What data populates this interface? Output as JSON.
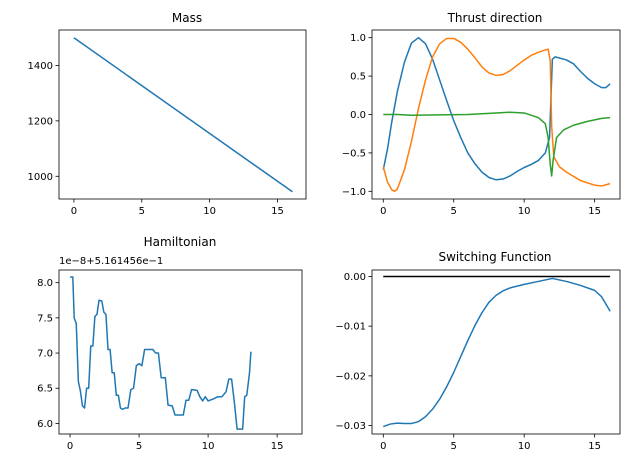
{
  "chart_data": [
    {
      "type": "line",
      "title": "Mass",
      "xlim": [
        -1.1,
        17.1
      ],
      "ylim": [
        918,
        1528
      ],
      "xticks": [
        0,
        5,
        10,
        15
      ],
      "xtick_labels": [
        "0",
        "5",
        "10",
        "15"
      ],
      "yticks": [
        1000,
        1200,
        1400
      ],
      "ytick_labels": [
        "1000",
        "1200",
        "1400"
      ],
      "series": [
        {
          "color": "#1f77b4",
          "points": [
            [
              0,
              1500
            ],
            [
              16.1,
              944
            ]
          ]
        }
      ]
    },
    {
      "type": "line",
      "title": "Thrust direction",
      "xlim": [
        -0.8,
        16.8
      ],
      "ylim": [
        -1.1,
        1.1
      ],
      "xticks": [
        0,
        5,
        10,
        15
      ],
      "xtick_labels": [
        "0",
        "5",
        "10",
        "15"
      ],
      "yticks": [
        -1.0,
        -0.5,
        0.0,
        0.5,
        1.0
      ],
      "ytick_labels": [
        "−1.0",
        "−0.5",
        "0.0",
        "0.5",
        "1.0"
      ],
      "series": [
        {
          "color": "#1f77b4",
          "points": [
            [
              0,
              -0.72
            ],
            [
              0.3,
              -0.45
            ],
            [
              0.6,
              -0.1
            ],
            [
              1.0,
              0.3
            ],
            [
              1.5,
              0.68
            ],
            [
              2.0,
              0.93
            ],
            [
              2.5,
              1.0
            ],
            [
              3.0,
              0.92
            ],
            [
              3.5,
              0.72
            ],
            [
              4.0,
              0.45
            ],
            [
              4.5,
              0.18
            ],
            [
              5.0,
              -0.08
            ],
            [
              5.5,
              -0.3
            ],
            [
              6.0,
              -0.5
            ],
            [
              6.5,
              -0.64
            ],
            [
              7.0,
              -0.75
            ],
            [
              7.5,
              -0.82
            ],
            [
              8.0,
              -0.85
            ],
            [
              8.5,
              -0.84
            ],
            [
              9.0,
              -0.8
            ],
            [
              9.5,
              -0.74
            ],
            [
              10.0,
              -0.69
            ],
            [
              10.5,
              -0.65
            ],
            [
              11.0,
              -0.6
            ],
            [
              11.5,
              -0.5
            ],
            [
              11.8,
              -0.3
            ],
            [
              12.0,
              0.72
            ],
            [
              12.2,
              0.75
            ],
            [
              13.0,
              0.71
            ],
            [
              13.5,
              0.66
            ],
            [
              14.0,
              0.56
            ],
            [
              14.5,
              0.47
            ],
            [
              15.0,
              0.4
            ],
            [
              15.5,
              0.35
            ],
            [
              15.8,
              0.35
            ],
            [
              16.1,
              0.4
            ]
          ]
        },
        {
          "color": "#ff7f0e",
          "points": [
            [
              0,
              -0.68
            ],
            [
              0.3,
              -0.88
            ],
            [
              0.6,
              -0.98
            ],
            [
              0.8,
              -1.0
            ],
            [
              1.0,
              -0.97
            ],
            [
              1.5,
              -0.72
            ],
            [
              2.0,
              -0.35
            ],
            [
              2.5,
              0.08
            ],
            [
              3.0,
              0.45
            ],
            [
              3.5,
              0.75
            ],
            [
              4.0,
              0.92
            ],
            [
              4.5,
              0.99
            ],
            [
              5.0,
              0.99
            ],
            [
              5.5,
              0.94
            ],
            [
              6.0,
              0.85
            ],
            [
              6.5,
              0.74
            ],
            [
              7.0,
              0.62
            ],
            [
              7.5,
              0.54
            ],
            [
              8.0,
              0.51
            ],
            [
              8.5,
              0.52
            ],
            [
              9.0,
              0.57
            ],
            [
              9.5,
              0.64
            ],
            [
              10.0,
              0.71
            ],
            [
              10.5,
              0.77
            ],
            [
              11.0,
              0.81
            ],
            [
              11.5,
              0.84
            ],
            [
              11.7,
              0.85
            ],
            [
              11.85,
              0.7
            ],
            [
              11.95,
              -0.15
            ],
            [
              12.1,
              -0.55
            ],
            [
              12.5,
              -0.68
            ],
            [
              13.0,
              -0.75
            ],
            [
              14.0,
              -0.86
            ],
            [
              14.5,
              -0.89
            ],
            [
              15.0,
              -0.92
            ],
            [
              15.5,
              -0.93
            ],
            [
              16.1,
              -0.9
            ]
          ]
        },
        {
          "color": "#2ca02c",
          "points": [
            [
              0,
              0.0
            ],
            [
              1.0,
              0.0
            ],
            [
              2.0,
              -0.01
            ],
            [
              4.0,
              -0.005
            ],
            [
              6.0,
              0.0
            ],
            [
              8.0,
              0.02
            ],
            [
              9.0,
              0.03
            ],
            [
              10.0,
              0.02
            ],
            [
              11.0,
              -0.04
            ],
            [
              11.5,
              -0.12
            ],
            [
              11.7,
              -0.3
            ],
            [
              11.85,
              -0.65
            ],
            [
              11.95,
              -0.8
            ],
            [
              12.05,
              -0.6
            ],
            [
              12.3,
              -0.3
            ],
            [
              12.8,
              -0.2
            ],
            [
              13.5,
              -0.14
            ],
            [
              14.5,
              -0.09
            ],
            [
              15.5,
              -0.05
            ],
            [
              16.1,
              -0.04
            ]
          ]
        }
      ]
    },
    {
      "type": "line",
      "title": "Hamiltonian",
      "offset_label": "1e−8+5.161456e−1",
      "xlim": [
        -0.8,
        16.8
      ],
      "ylim": [
        5.85,
        8.18
      ],
      "xticks": [
        0,
        5,
        10,
        15
      ],
      "xtick_labels": [
        "0",
        "5",
        "10",
        "15"
      ],
      "yticks": [
        6.0,
        6.5,
        7.0,
        7.5,
        8.0
      ],
      "ytick_labels": [
        "6.0",
        "6.5",
        "7.0",
        "7.5",
        "8.0"
      ],
      "series": [
        {
          "color": "#1f77b4",
          "points": [
            [
              0,
              8.08
            ],
            [
              0.2,
              8.08
            ],
            [
              0.3,
              7.5
            ],
            [
              0.45,
              7.42
            ],
            [
              0.6,
              6.6
            ],
            [
              0.75,
              6.46
            ],
            [
              0.9,
              6.25
            ],
            [
              1.05,
              6.22
            ],
            [
              1.2,
              6.5
            ],
            [
              1.35,
              6.5
            ],
            [
              1.5,
              7.1
            ],
            [
              1.65,
              7.1
            ],
            [
              1.8,
              7.52
            ],
            [
              1.95,
              7.55
            ],
            [
              2.1,
              7.75
            ],
            [
              2.3,
              7.74
            ],
            [
              2.45,
              7.58
            ],
            [
              2.6,
              7.55
            ],
            [
              2.75,
              7.05
            ],
            [
              2.9,
              7.05
            ],
            [
              3.05,
              6.72
            ],
            [
              3.2,
              6.72
            ],
            [
              3.35,
              6.4
            ],
            [
              3.5,
              6.4
            ],
            [
              3.65,
              6.22
            ],
            [
              3.8,
              6.2
            ],
            [
              4.0,
              6.22
            ],
            [
              4.2,
              6.22
            ],
            [
              4.4,
              6.48
            ],
            [
              4.6,
              6.5
            ],
            [
              4.8,
              6.82
            ],
            [
              5.0,
              6.85
            ],
            [
              5.2,
              6.82
            ],
            [
              5.4,
              7.05
            ],
            [
              6.0,
              7.05
            ],
            [
              6.2,
              7.0
            ],
            [
              6.4,
              7.0
            ],
            [
              6.6,
              6.65
            ],
            [
              6.9,
              6.65
            ],
            [
              7.1,
              6.26
            ],
            [
              7.4,
              6.25
            ],
            [
              7.6,
              6.12
            ],
            [
              8.2,
              6.12
            ],
            [
              8.4,
              6.33
            ],
            [
              8.6,
              6.33
            ],
            [
              8.8,
              6.48
            ],
            [
              9.2,
              6.47
            ],
            [
              9.4,
              6.38
            ],
            [
              9.6,
              6.32
            ],
            [
              9.8,
              6.38
            ],
            [
              10.0,
              6.32
            ],
            [
              10.4,
              6.35
            ],
            [
              10.7,
              6.38
            ],
            [
              11.0,
              6.38
            ],
            [
              11.3,
              6.45
            ],
            [
              11.5,
              6.63
            ],
            [
              11.7,
              6.63
            ],
            [
              11.9,
              6.3
            ],
            [
              12.1,
              5.92
            ],
            [
              12.5,
              5.92
            ],
            [
              12.65,
              6.38
            ],
            [
              12.8,
              6.4
            ],
            [
              13.0,
              6.72
            ],
            [
              13.1,
              7.02
            ]
          ]
        }
      ]
    },
    {
      "type": "line",
      "title": "Switching Function",
      "xlim": [
        -0.8,
        16.8
      ],
      "ylim": [
        -0.0317,
        0.0013
      ],
      "xticks": [
        0,
        5,
        10,
        15
      ],
      "xtick_labels": [
        "0",
        "5",
        "10",
        "15"
      ],
      "yticks": [
        0.0,
        -0.01,
        -0.02,
        -0.03
      ],
      "ytick_labels": [
        "0.00",
        "−0.01",
        "−0.02",
        "−0.03"
      ],
      "series": [
        {
          "color": "#1f77b4",
          "points": [
            [
              0,
              -0.0302
            ],
            [
              0.5,
              -0.0297
            ],
            [
              1.0,
              -0.0295
            ],
            [
              1.5,
              -0.0296
            ],
            [
              2.0,
              -0.0296
            ],
            [
              2.5,
              -0.0292
            ],
            [
              3.0,
              -0.0282
            ],
            [
              3.5,
              -0.0267
            ],
            [
              4.0,
              -0.0247
            ],
            [
              4.5,
              -0.0222
            ],
            [
              5.0,
              -0.0193
            ],
            [
              5.5,
              -0.0161
            ],
            [
              6.0,
              -0.0129
            ],
            [
              6.5,
              -0.0099
            ],
            [
              7.0,
              -0.0073
            ],
            [
              7.5,
              -0.0052
            ],
            [
              8.0,
              -0.0038
            ],
            [
              8.5,
              -0.0029
            ],
            [
              9.0,
              -0.0023
            ],
            [
              10.0,
              -0.0016
            ],
            [
              11.0,
              -0.001
            ],
            [
              12.0,
              -0.0004
            ],
            [
              13.0,
              -0.001
            ],
            [
              14.0,
              -0.0018
            ],
            [
              15.0,
              -0.0028
            ],
            [
              15.5,
              -0.0041
            ],
            [
              16.1,
              -0.007
            ]
          ]
        },
        {
          "color": "#000000",
          "points": [
            [
              0,
              0.0
            ],
            [
              16.1,
              0.0
            ]
          ]
        }
      ]
    }
  ]
}
